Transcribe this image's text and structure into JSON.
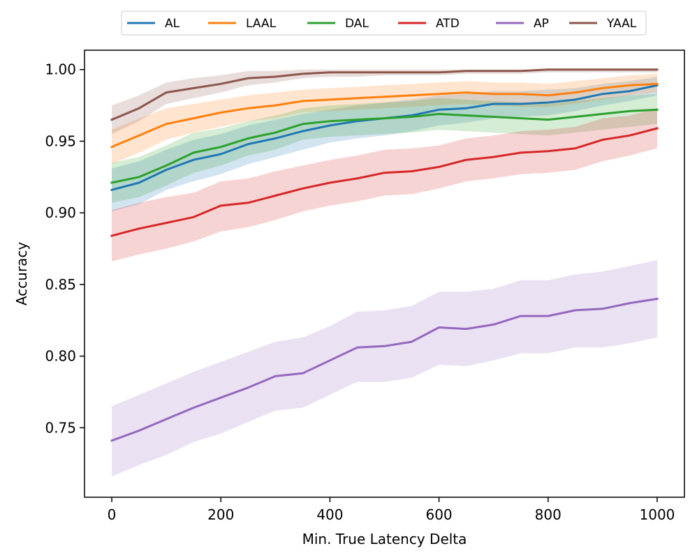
{
  "chart_data": {
    "type": "line",
    "title": "",
    "xlabel": "Min. True Latency Delta",
    "ylabel": "Accuracy",
    "xlim": [
      -50,
      1050
    ],
    "ylim": [
      0.7015,
      1.0135
    ],
    "xticks": [
      0,
      200,
      400,
      600,
      800,
      1000
    ],
    "yticks": [
      0.75,
      0.8,
      0.85,
      0.9,
      0.95,
      1.0
    ],
    "xtick_labels": [
      "0",
      "200",
      "400",
      "600",
      "800",
      "1000"
    ],
    "ytick_labels": [
      "0.75",
      "0.80",
      "0.85",
      "0.90",
      "0.95",
      "1.00"
    ],
    "legend_position": "top-center-outside",
    "x": [
      0,
      50,
      100,
      150,
      200,
      250,
      300,
      350,
      400,
      450,
      500,
      550,
      600,
      650,
      700,
      750,
      800,
      850,
      900,
      950,
      1000
    ],
    "series": [
      {
        "name": "AL",
        "color": "#1f77b4",
        "values": [
          0.916,
          0.921,
          0.93,
          0.937,
          0.941,
          0.948,
          0.952,
          0.957,
          0.961,
          0.964,
          0.966,
          0.968,
          0.972,
          0.973,
          0.976,
          0.976,
          0.977,
          0.979,
          0.983,
          0.985,
          0.989
        ],
        "lower": [
          0.901,
          0.906,
          0.916,
          0.922,
          0.927,
          0.934,
          0.939,
          0.944,
          0.949,
          0.952,
          0.954,
          0.957,
          0.961,
          0.963,
          0.966,
          0.967,
          0.968,
          0.971,
          0.975,
          0.978,
          0.982
        ],
        "upper": [
          0.931,
          0.936,
          0.944,
          0.951,
          0.955,
          0.961,
          0.965,
          0.969,
          0.972,
          0.975,
          0.977,
          0.979,
          0.982,
          0.983,
          0.985,
          0.985,
          0.986,
          0.987,
          0.99,
          0.992,
          0.995
        ]
      },
      {
        "name": "LAAL",
        "color": "#ff7f0e",
        "values": [
          0.946,
          0.954,
          0.962,
          0.966,
          0.97,
          0.973,
          0.975,
          0.978,
          0.979,
          0.98,
          0.981,
          0.982,
          0.983,
          0.984,
          0.983,
          0.983,
          0.982,
          0.984,
          0.987,
          0.989,
          0.99
        ],
        "lower": [
          0.934,
          0.942,
          0.951,
          0.956,
          0.96,
          0.964,
          0.966,
          0.97,
          0.971,
          0.972,
          0.973,
          0.974,
          0.975,
          0.976,
          0.975,
          0.974,
          0.974,
          0.976,
          0.979,
          0.982,
          0.984
        ],
        "upper": [
          0.958,
          0.966,
          0.973,
          0.976,
          0.979,
          0.982,
          0.984,
          0.986,
          0.987,
          0.988,
          0.989,
          0.99,
          0.991,
          0.992,
          0.991,
          0.991,
          0.99,
          0.992,
          0.994,
          0.996,
          0.997
        ]
      },
      {
        "name": "DAL",
        "color": "#2ca02c",
        "values": [
          0.921,
          0.925,
          0.933,
          0.942,
          0.946,
          0.952,
          0.956,
          0.962,
          0.964,
          0.965,
          0.966,
          0.967,
          0.969,
          0.968,
          0.967,
          0.966,
          0.965,
          0.967,
          0.969,
          0.971,
          0.972
        ],
        "lower": [
          0.907,
          0.911,
          0.919,
          0.928,
          0.933,
          0.94,
          0.944,
          0.951,
          0.953,
          0.954,
          0.955,
          0.956,
          0.958,
          0.957,
          0.956,
          0.955,
          0.954,
          0.956,
          0.958,
          0.96,
          0.962
        ],
        "upper": [
          0.935,
          0.939,
          0.947,
          0.956,
          0.959,
          0.964,
          0.968,
          0.973,
          0.975,
          0.976,
          0.977,
          0.978,
          0.98,
          0.979,
          0.978,
          0.977,
          0.976,
          0.978,
          0.98,
          0.982,
          0.983
        ]
      },
      {
        "name": "ATD",
        "color": "#d62728",
        "values": [
          0.884,
          0.889,
          0.893,
          0.897,
          0.905,
          0.907,
          0.912,
          0.917,
          0.921,
          0.924,
          0.928,
          0.929,
          0.932,
          0.937,
          0.939,
          0.942,
          0.943,
          0.945,
          0.951,
          0.954,
          0.959
        ],
        "lower": [
          0.866,
          0.871,
          0.875,
          0.88,
          0.887,
          0.89,
          0.895,
          0.901,
          0.905,
          0.908,
          0.912,
          0.913,
          0.917,
          0.922,
          0.924,
          0.927,
          0.928,
          0.93,
          0.936,
          0.94,
          0.945
        ],
        "upper": [
          0.902,
          0.907,
          0.911,
          0.914,
          0.922,
          0.924,
          0.929,
          0.933,
          0.937,
          0.94,
          0.944,
          0.945,
          0.947,
          0.952,
          0.954,
          0.957,
          0.958,
          0.96,
          0.966,
          0.968,
          0.973
        ]
      },
      {
        "name": "AP",
        "color": "#9467bd",
        "values": [
          0.741,
          0.748,
          0.756,
          0.764,
          0.771,
          0.778,
          0.786,
          0.788,
          0.797,
          0.806,
          0.807,
          0.81,
          0.82,
          0.819,
          0.822,
          0.828,
          0.828,
          0.832,
          0.833,
          0.837,
          0.84
        ],
        "lower": [
          0.716,
          0.724,
          0.731,
          0.74,
          0.746,
          0.754,
          0.762,
          0.764,
          0.773,
          0.782,
          0.782,
          0.785,
          0.794,
          0.793,
          0.797,
          0.802,
          0.802,
          0.806,
          0.806,
          0.809,
          0.813
        ],
        "upper": [
          0.765,
          0.773,
          0.781,
          0.789,
          0.796,
          0.803,
          0.81,
          0.813,
          0.821,
          0.831,
          0.832,
          0.835,
          0.845,
          0.845,
          0.847,
          0.853,
          0.853,
          0.857,
          0.859,
          0.863,
          0.867
        ]
      },
      {
        "name": "YAAL",
        "color": "#8c564b",
        "values": [
          0.965,
          0.973,
          0.984,
          0.987,
          0.99,
          0.994,
          0.995,
          0.997,
          0.998,
          0.998,
          0.998,
          0.998,
          0.998,
          0.999,
          0.999,
          0.999,
          1.0,
          1.0,
          1.0,
          1.0,
          1.0
        ],
        "lower": [
          0.955,
          0.964,
          0.976,
          0.98,
          0.984,
          0.989,
          0.991,
          0.994,
          0.995,
          0.995,
          0.996,
          0.996,
          0.996,
          0.997,
          0.997,
          0.997,
          0.998,
          0.998,
          0.998,
          0.998,
          0.998
        ],
        "upper": [
          0.975,
          0.982,
          0.991,
          0.994,
          0.996,
          0.999,
          0.999,
          1.0,
          1.0,
          1.0,
          1.0,
          1.0,
          1.0,
          1.0,
          1.0,
          1.0,
          1.0,
          1.0,
          1.0,
          1.0,
          1.0
        ]
      }
    ]
  }
}
